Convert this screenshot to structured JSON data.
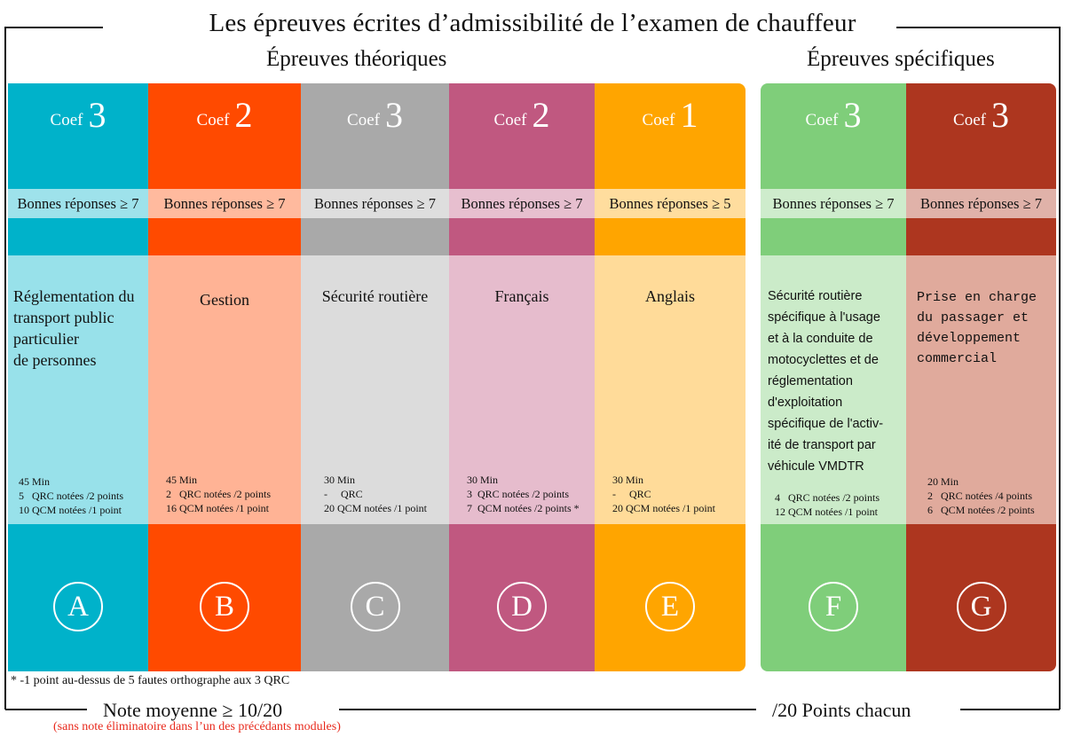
{
  "title": "Les épreuves écrites d’admissibilité de l’examen de chauffeur",
  "groups": {
    "theoretical": "Épreuves théoriques",
    "specific": "Épreuves spécifiques"
  },
  "coef_label": "Coef",
  "columns": [
    {
      "letter": "A",
      "coef": "3",
      "threshold": "Bonnes réponses ≥ 7",
      "subject": "Réglementation du\ntransport public\nparticulier\nde personnes",
      "details": "45 Min\n5   QRC notées /2 points\n10 QCM notées /1 point",
      "color": "#00b2ca",
      "light": "#98e1ea"
    },
    {
      "letter": "B",
      "coef": "2",
      "threshold": "Bonnes réponses ≥ 7",
      "subject": "Gestion",
      "details": "45 Min\n2   QRC notées /2 points\n16 QCM notées /1 point",
      "color": "#ff4a00",
      "light": "#ffb395"
    },
    {
      "letter": "C",
      "coef": "3",
      "threshold": "Bonnes réponses ≥ 7",
      "subject": "Sécurité routière",
      "details": "30 Min\n-     QRC\n20 QCM notées /1 point",
      "color": "#a9a9a9",
      "light": "#dcdcdc"
    },
    {
      "letter": "D",
      "coef": "2",
      "threshold": "Bonnes réponses ≥ 7",
      "subject": "Français",
      "details": "30 Min\n3  QRC notées /2 points\n7  QCM notées /2 points *",
      "color": "#c05880",
      "light": "#e6bccd"
    },
    {
      "letter": "E",
      "coef": "1",
      "threshold": "Bonnes réponses ≥ 5",
      "subject": "Anglais",
      "details": "30 Min\n-     QRC\n20 QCM notées /1 point",
      "color": "#ffa500",
      "light": "#ffdb99"
    },
    {
      "letter": "F",
      "coef": "3",
      "threshold": "Bonnes réponses ≥ 7",
      "subject": "Sécurité routière\nspécifique à l'usage\net à la conduite de\nmotocyclettes et de\nréglementation\nd'exploitation\nspécifique de l'activ-\nité de transport par\nvéhicule VMDTR",
      "details": "4   QRC notées /2 points\n12 QCM notées /1 point",
      "color": "#7fce7a",
      "light": "#cbebc9"
    },
    {
      "letter": "G",
      "coef": "3",
      "threshold": "Bonnes réponses ≥ 7",
      "subject": "Prise en charge\ndu passager et\ndéveloppement\ncommercial",
      "details": "20 Min\n2   QRC notées /4 points\n6   QCM notées /2 points",
      "color": "#ad361f",
      "light": "#e0aa9c"
    }
  ],
  "footnote": "* -1 point au-dessus de 5 fautes orthographe aux 3 QRC",
  "bottom": {
    "average": "Note moyenne ≥ 10/20",
    "note": "(sans note éliminatoire dans l’un des précédants modules)",
    "points": "/20 Points chacun"
  },
  "colors": {
    "frame": "#111111",
    "note_red": "#e8291c"
  }
}
